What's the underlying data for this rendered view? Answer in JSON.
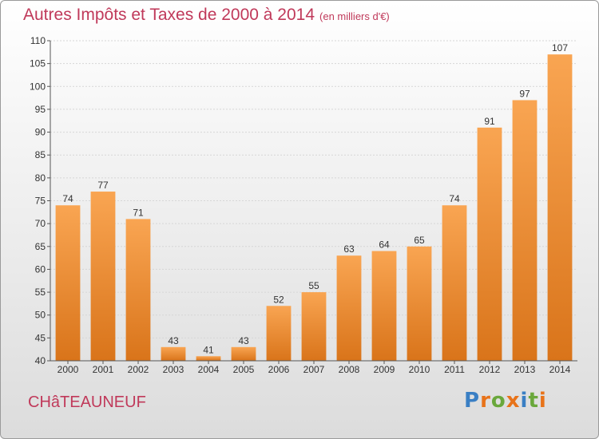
{
  "title": "Autres Impôts et Taxes de 2000 à 2014",
  "unit": "(en milliers d'€)",
  "location": "CHâTEAUNEUF",
  "logo": {
    "letters": [
      "P",
      "r",
      "o",
      "x",
      "i",
      "t",
      "i"
    ],
    "colors": [
      "#3a7fc4",
      "#e8731a",
      "#6aa83c",
      "#e8731a",
      "#3a7fc4",
      "#6aa83c",
      "#e8731a"
    ]
  },
  "chart_data": {
    "type": "bar",
    "title": "Autres Impôts et Taxes de 2000 à 2014",
    "xlabel": "",
    "ylabel": "",
    "categories": [
      "2000",
      "2001",
      "2002",
      "2003",
      "2004",
      "2005",
      "2006",
      "2007",
      "2008",
      "2009",
      "2010",
      "2011",
      "2012",
      "2013",
      "2014"
    ],
    "values": [
      74,
      77,
      71,
      43,
      41,
      43,
      52,
      55,
      63,
      64,
      65,
      74,
      91,
      97,
      107
    ],
    "ylim": [
      40,
      110
    ],
    "yticks": [
      40,
      45,
      50,
      55,
      60,
      65,
      70,
      75,
      80,
      85,
      90,
      95,
      100,
      105,
      110
    ],
    "grid": true,
    "bar_color": "#f0922e"
  }
}
